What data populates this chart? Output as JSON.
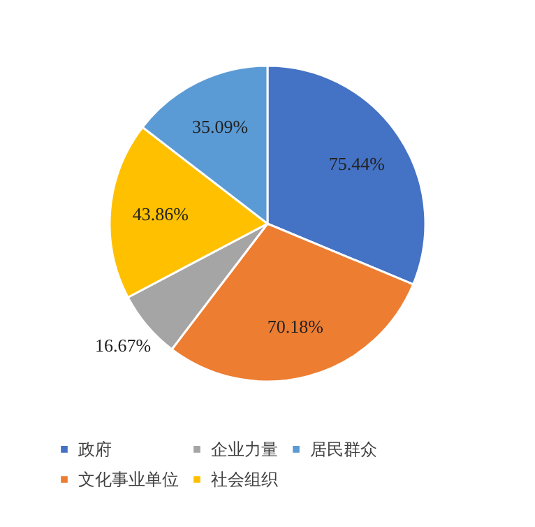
{
  "chart_data": {
    "type": "pie",
    "categories": [
      "政府",
      "文化事业单位",
      "企业力量",
      "社会组织",
      "居民群众"
    ],
    "values": [
      75.44,
      70.18,
      16.67,
      43.86,
      35.09
    ],
    "colors": [
      "#4472c4",
      "#ed7d31",
      "#a5a5a5",
      "#ffc000",
      "#5b9bd5"
    ],
    "value_labels": [
      "75.44%",
      "70.18%",
      "16.67%",
      "43.86%",
      "35.09%"
    ],
    "legend": "bottom"
  }
}
